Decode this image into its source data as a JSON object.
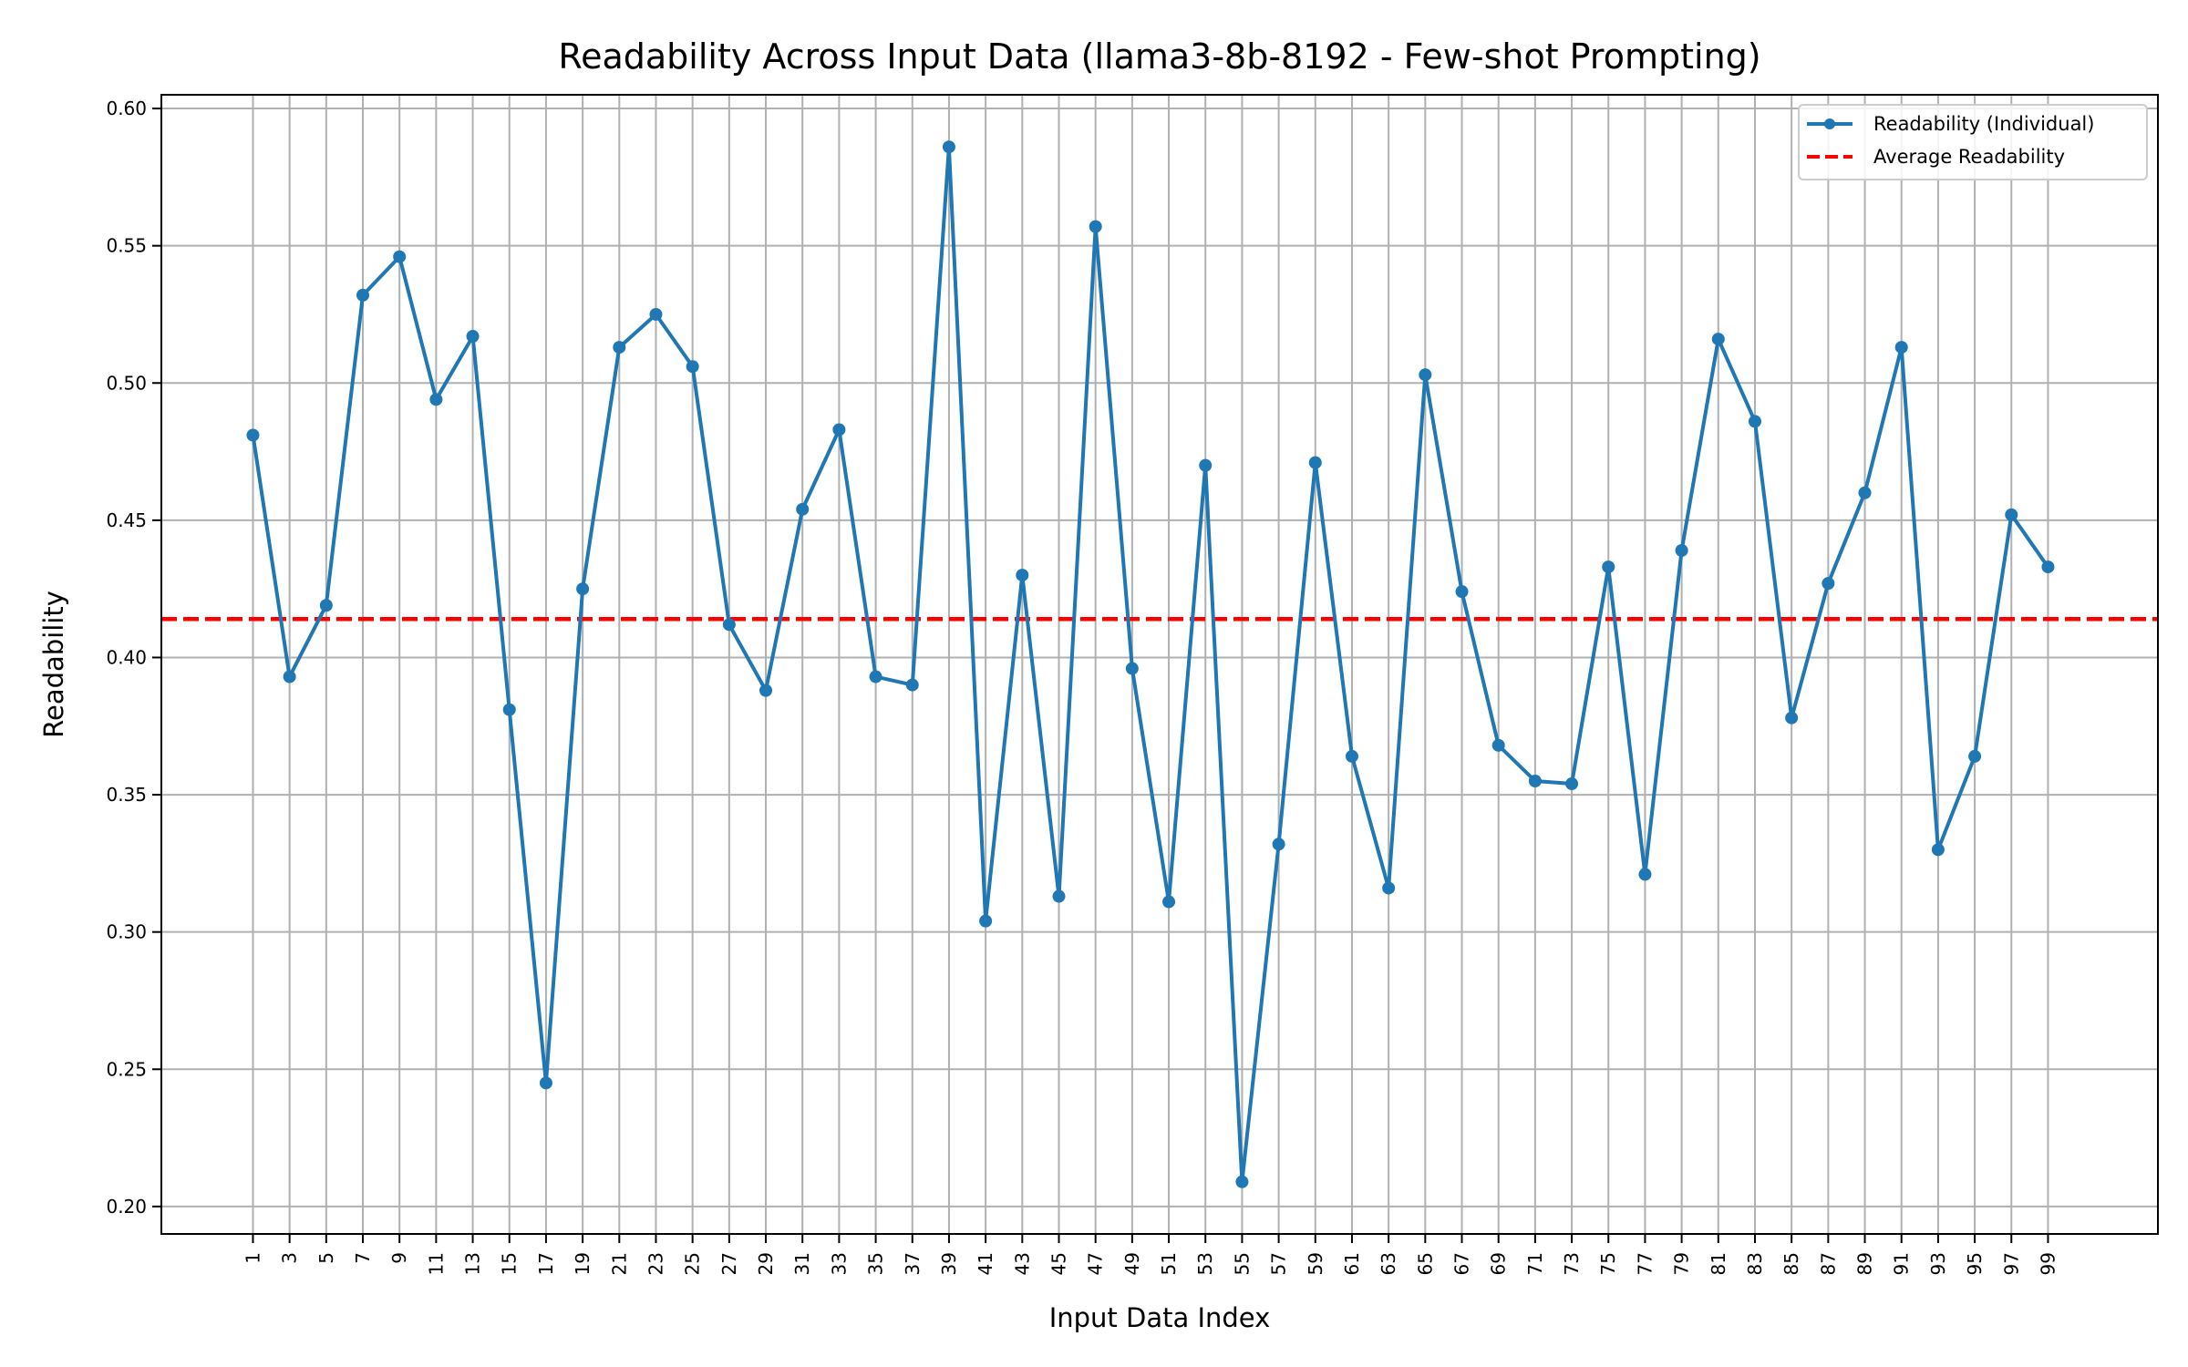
{
  "chart_data": {
    "type": "line",
    "title": "Readability Across Input Data (llama3-8b-8192 - Few-shot Prompting)",
    "xlabel": "Input Data Index",
    "ylabel": "Readability",
    "x": [
      1,
      3,
      5,
      7,
      9,
      11,
      13,
      15,
      17,
      19,
      21,
      23,
      25,
      27,
      29,
      31,
      33,
      35,
      37,
      39,
      41,
      43,
      45,
      47,
      49,
      51,
      53,
      55,
      57,
      59,
      61,
      63,
      65,
      67,
      69,
      71,
      73,
      75,
      77,
      79,
      81,
      83,
      85,
      87,
      89,
      91,
      93,
      95,
      97,
      99
    ],
    "x_ticks": [
      "1",
      "3",
      "5",
      "7",
      "9",
      "11",
      "13",
      "15",
      "17",
      "19",
      "21",
      "23",
      "25",
      "27",
      "29",
      "31",
      "33",
      "35",
      "37",
      "39",
      "41",
      "43",
      "45",
      "47",
      "49",
      "51",
      "53",
      "55",
      "57",
      "59",
      "61",
      "63",
      "65",
      "67",
      "69",
      "71",
      "73",
      "75",
      "77",
      "79",
      "81",
      "83",
      "85",
      "87",
      "89",
      "91",
      "93",
      "95",
      "97",
      "99"
    ],
    "y_ticks": [
      "0.20",
      "0.25",
      "0.30",
      "0.35",
      "0.40",
      "0.45",
      "0.50",
      "0.55",
      "0.60"
    ],
    "xlim": [
      -4,
      105
    ],
    "ylim": [
      0.19,
      0.605
    ],
    "grid": true,
    "legend_position": "top-right",
    "series": [
      {
        "name": "Readability (Individual)",
        "color": "#1f77b4",
        "style": "solid-with-markers",
        "values": [
          0.481,
          0.393,
          0.419,
          0.532,
          0.546,
          0.494,
          0.517,
          0.381,
          0.245,
          0.425,
          0.513,
          0.525,
          0.506,
          0.412,
          0.388,
          0.454,
          0.483,
          0.393,
          0.39,
          0.586,
          0.304,
          0.43,
          0.313,
          0.557,
          0.396,
          0.311,
          0.47,
          0.209,
          0.332,
          0.471,
          0.364,
          0.316,
          0.503,
          0.424,
          0.368,
          0.355,
          0.354,
          0.433,
          0.321,
          0.439,
          0.516,
          0.486,
          0.378,
          0.427,
          0.46,
          0.513,
          0.33,
          0.364,
          0.452,
          0.433
        ]
      },
      {
        "name": "Average Readability",
        "color": "#ff0000",
        "style": "dashed",
        "value": 0.414
      }
    ]
  }
}
